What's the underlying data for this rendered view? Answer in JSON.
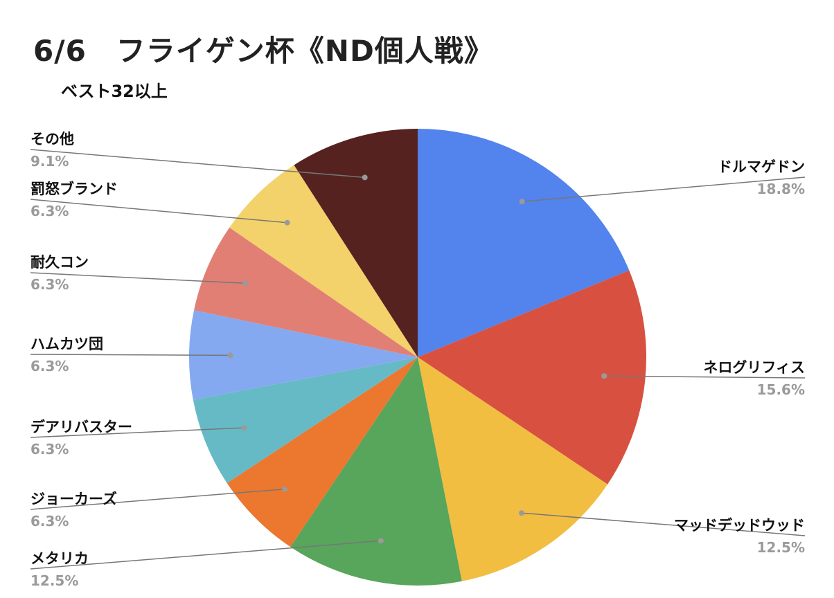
{
  "title": "6/6　フライゲン杯《ND個人戦》",
  "subtitle": "ベスト32以上",
  "chart_data": {
    "type": "pie",
    "title": "6/6　フライゲン杯《ND個人戦》",
    "subtitle": "ベスト32以上",
    "slices": [
      {
        "label": "ドルマゲドン",
        "value": 18.8,
        "pct_label": "18.8%",
        "color": "#5383EC",
        "side": "right"
      },
      {
        "label": "ネログリフィス",
        "value": 15.6,
        "pct_label": "15.6%",
        "color": "#D85140",
        "side": "right"
      },
      {
        "label": "マッドデッドウッド",
        "value": 12.5,
        "pct_label": "12.5%",
        "color": "#F1BE42",
        "side": "right"
      },
      {
        "label": "メタリカ",
        "value": 12.5,
        "pct_label": "12.5%",
        "color": "#58A55C",
        "side": "left"
      },
      {
        "label": "ジョーカーズ",
        "value": 6.3,
        "pct_label": "6.3%",
        "color": "#EC772F",
        "side": "left"
      },
      {
        "label": "デアリバスター",
        "value": 6.3,
        "pct_label": "6.3%",
        "color": "#66BAC5",
        "side": "left"
      },
      {
        "label": "ハムカツ団",
        "value": 6.3,
        "pct_label": "6.3%",
        "color": "#84A9F0",
        "side": "left"
      },
      {
        "label": "耐久コン",
        "value": 6.3,
        "pct_label": "6.3%",
        "color": "#E17F75",
        "side": "left"
      },
      {
        "label": "罰怒ブランド",
        "value": 6.3,
        "pct_label": "6.3%",
        "color": "#F3D16B",
        "side": "left"
      },
      {
        "label": "その他",
        "value": 9.1,
        "pct_label": "9.1%",
        "color": "#552220",
        "side": "left"
      }
    ],
    "start_angle": "12 o'clock",
    "direction": "clockwise",
    "labels": "outside with leader lines"
  }
}
